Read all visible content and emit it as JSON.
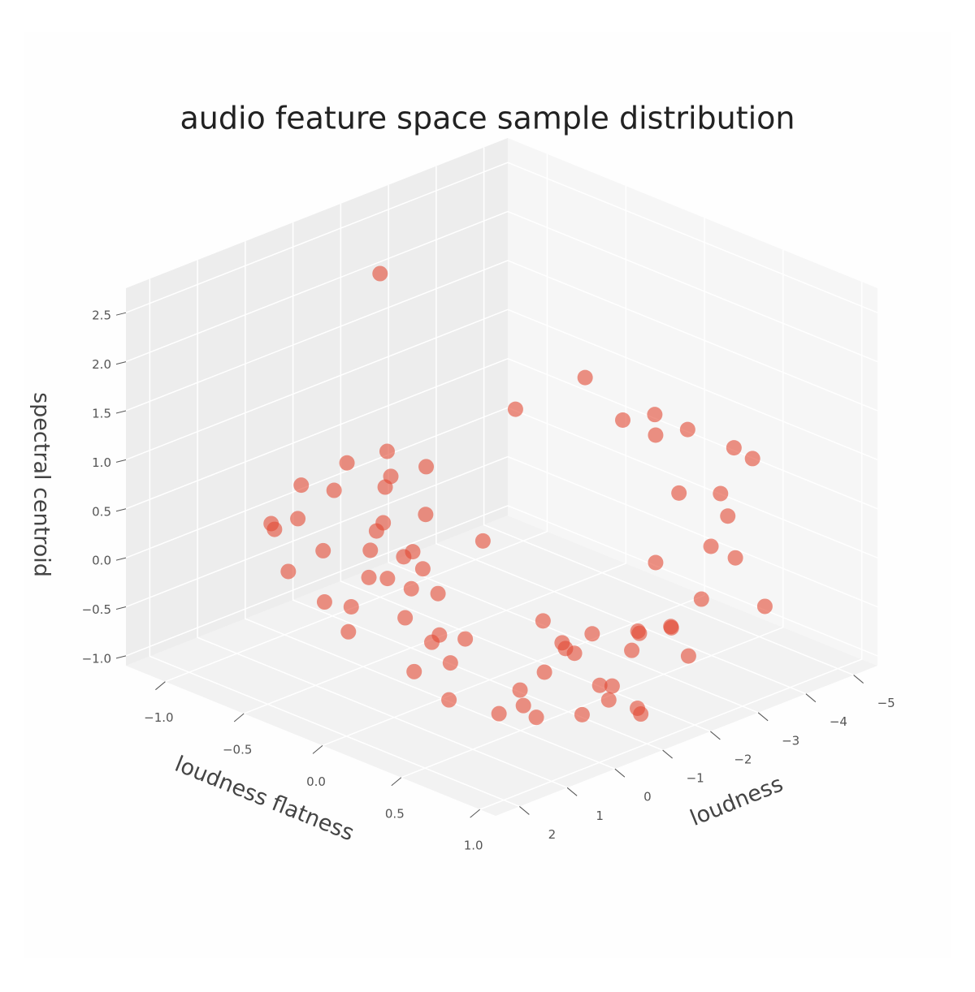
{
  "chart_data": {
    "type": "scatter3d",
    "title": "audio feature space sample distribution",
    "x_label": "loudness flatness",
    "y_label": "loudness",
    "z_label": "spectral centroid",
    "color": "#e24a33",
    "grid": true,
    "xlim": [
      -1.25,
      1.1
    ],
    "ylim": [
      -5.5,
      2.5
    ],
    "zlim": [
      -1.1,
      2.75
    ],
    "xticks": [
      {
        "value": -1.0,
        "label": "−1.0"
      },
      {
        "value": -0.5,
        "label": "−0.5"
      },
      {
        "value": 0,
        "label": "0.0"
      },
      0.5,
      {
        "value": 1,
        "label": "1.0"
      }
    ],
    "yticks": [
      {
        "value": -5,
        "label": "−5"
      },
      {
        "value": -4,
        "label": "−4"
      },
      {
        "value": -3,
        "label": "−3"
      },
      {
        "value": -2,
        "label": "−2"
      },
      {
        "value": -1,
        "label": "−1"
      },
      0,
      1,
      2
    ],
    "zticks": [
      {
        "value": -1.0,
        "label": "−1.0"
      },
      {
        "value": -0.5,
        "label": "−0.5"
      },
      {
        "value": 0,
        "label": "0.0"
      },
      0.5,
      {
        "value": 1,
        "label": "1.0"
      },
      1.5,
      {
        "value": 2,
        "label": "2.0"
      },
      2.5
    ],
    "x": [
      -0.2,
      0.1,
      -0.4,
      0.2,
      -0.1,
      0.0,
      -0.3,
      0.3,
      -0.5,
      0.4,
      0.1,
      -0.2,
      0.2,
      -0.6,
      0.5,
      -0.3,
      0.0,
      0.3,
      -0.4,
      0.1,
      -0.1,
      0.4,
      -0.7,
      0.2,
      0.6,
      -0.2,
      0.0,
      0.5,
      -0.3,
      -0.1,
      0.2,
      0.0,
      0.3,
      -0.5,
      0.7,
      0.8,
      1.0,
      -1.0,
      0.5,
      0.3,
      0.6,
      0.2,
      0.7,
      0.4,
      0.0,
      0.8,
      0.9,
      -0.2,
      0.5,
      0.3,
      0.9,
      0.6,
      1.0,
      0.8,
      0.5,
      0.6,
      0.7,
      0.4,
      0.8,
      0.9,
      0.5,
      0.6,
      0.7,
      0.9,
      1.0,
      0.8,
      0.6,
      0.9,
      0.4,
      0.7,
      1.0,
      0.3,
      0.8
    ],
    "y": [
      1.6,
      1.4,
      1.7,
      1.8,
      1.2,
      1.9,
      1.5,
      1.6,
      1.3,
      1.9,
      1.1,
      1.8,
      1.3,
      1.6,
      1.7,
      1.0,
      1.5,
      1.2,
      1.9,
      1.7,
      0.9,
      1.4,
      1.2,
      1.0,
      1.8,
      1.3,
      0.8,
      1.5,
      0.2,
      0.0,
      -0.2,
      0.4,
      0.5,
      -0.5,
      0.6,
      1.0,
      2.1,
      -2.0,
      -3.5,
      -2.8,
      -2.5,
      -3.8,
      -4.2,
      -4.8,
      -3.0,
      -3.2,
      -2.0,
      -2.2,
      -4.5,
      -5.0,
      -3.8,
      -2.5,
      -1.5,
      -3.0,
      -0.5,
      -0.8,
      -1.0,
      -1.2,
      -0.3,
      -0.6,
      -1.5,
      -2.0,
      -1.8,
      -1.2,
      -0.8,
      -1.5,
      0.0,
      -2.2,
      -0.8,
      -2.5,
      -0.2,
      -1.6,
      -2.8
    ],
    "z": [
      1.2,
      1.5,
      0.8,
      0.6,
      0.3,
      0.2,
      0.5,
      0.9,
      1.0,
      -0.2,
      0.0,
      0.1,
      0.4,
      0.6,
      0.2,
      1.3,
      0.7,
      -0.1,
      0.3,
      1.0,
      0.8,
      0.5,
      0.4,
      1.1,
      0.0,
      -0.3,
      0.5,
      -0.5,
      0.9,
      1.2,
      0.6,
      0.3,
      -0.2,
      1.0,
      -0.6,
      -0.3,
      -0.2,
      2.2,
      1.3,
      1.4,
      1.5,
      1.2,
      1.0,
      0.8,
      1.6,
      0.9,
      1.2,
      1.3,
      -0.2,
      0.0,
      -0.3,
      0.2,
      0.0,
      0.4,
      -0.6,
      -0.4,
      -0.7,
      -0.5,
      -0.8,
      -0.5,
      -0.4,
      -0.6,
      -0.3,
      -0.9,
      -0.7,
      -0.2,
      -0.9,
      -0.5,
      -0.2,
      -0.4,
      -0.5,
      -0.7,
      -0.1
    ]
  }
}
